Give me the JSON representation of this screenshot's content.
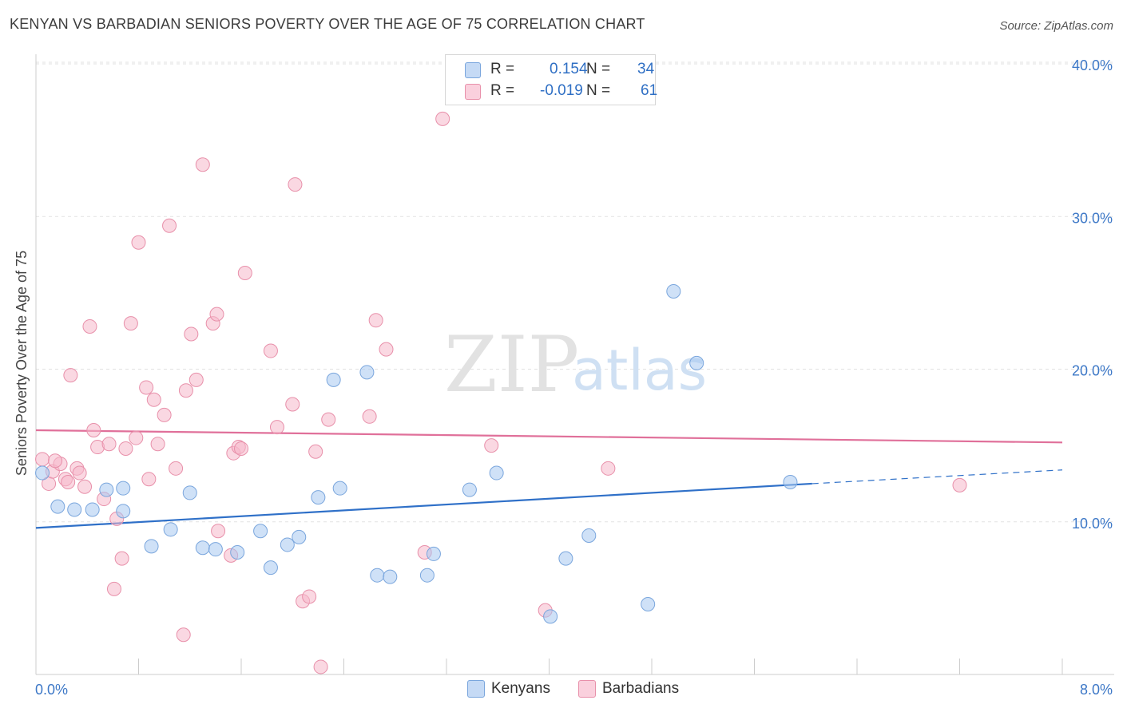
{
  "title": "KENYAN VS BARBADIAN SENIORS POVERTY OVER THE AGE OF 75 CORRELATION CHART",
  "source": "Source: ZipAtlas.com",
  "watermark": {
    "zip": "ZIP",
    "atlas": "atlas"
  },
  "legend_top": {
    "rows": [
      {
        "r_label": "R =",
        "r_value": "0.154",
        "n_label": "N =",
        "n_value": "34",
        "color": "#a8c8f0"
      },
      {
        "r_label": "R =",
        "r_value": "-0.019",
        "n_label": "N =",
        "n_value": "61",
        "color": "#f6b8cb"
      }
    ]
  },
  "legend_bottom": {
    "kenyans": "Kenyans",
    "barbadians": "Barbadians"
  },
  "chart_data": {
    "type": "scatter",
    "xlabel": "",
    "ylabel": "Seniors Poverty Over the Age of 75",
    "xlim": [
      0,
      8
    ],
    "ylim": [
      0,
      40
    ],
    "x_tick_labels": [
      "0.0%",
      "8.0%"
    ],
    "y_ticks": [
      10,
      20,
      30,
      40
    ],
    "y_tick_labels": [
      "10.0%",
      "20.0%",
      "30.0%",
      "40.0%"
    ],
    "grid": true,
    "legend": "bottom",
    "series": [
      {
        "name": "Kenyans",
        "color": "#a8c8f0",
        "edge": "#7aa6dd",
        "line_color": "#2f70c8",
        "trend": {
          "x0": 0.0,
          "y0": 9.6,
          "x1": 6.05,
          "y1": 12.5,
          "dash_to_x": 8.0,
          "dash_to_y": 13.4
        },
        "points": [
          [
            0.05,
            13.2
          ],
          [
            0.17,
            11.0
          ],
          [
            0.3,
            10.8
          ],
          [
            0.44,
            10.8
          ],
          [
            0.55,
            12.1
          ],
          [
            0.68,
            10.7
          ],
          [
            0.68,
            12.2
          ],
          [
            0.9,
            8.4
          ],
          [
            1.05,
            9.5
          ],
          [
            1.2,
            11.9
          ],
          [
            1.3,
            8.3
          ],
          [
            1.4,
            8.2
          ],
          [
            1.57,
            8.0
          ],
          [
            1.75,
            9.4
          ],
          [
            1.83,
            7.0
          ],
          [
            1.96,
            8.5
          ],
          [
            2.05,
            9.0
          ],
          [
            2.2,
            11.6
          ],
          [
            2.32,
            19.3
          ],
          [
            2.37,
            12.2
          ],
          [
            2.58,
            19.8
          ],
          [
            2.66,
            6.5
          ],
          [
            2.76,
            6.4
          ],
          [
            3.05,
            6.5
          ],
          [
            3.1,
            7.9
          ],
          [
            3.38,
            12.1
          ],
          [
            3.59,
            13.2
          ],
          [
            4.01,
            3.8
          ],
          [
            4.13,
            7.6
          ],
          [
            4.31,
            9.1
          ],
          [
            4.77,
            4.6
          ],
          [
            4.97,
            25.1
          ],
          [
            5.15,
            20.4
          ],
          [
            5.88,
            12.6
          ]
        ]
      },
      {
        "name": "Barbadians",
        "color": "#f6b8cb",
        "edge": "#e890aa",
        "line_color": "#e0709a",
        "trend": {
          "x0": 0.0,
          "y0": 16.0,
          "x1": 8.0,
          "y1": 15.2
        },
        "points": [
          [
            0.05,
            14.1
          ],
          [
            0.1,
            12.5
          ],
          [
            0.13,
            13.3
          ],
          [
            0.19,
            13.8
          ],
          [
            0.23,
            12.8
          ],
          [
            0.27,
            19.6
          ],
          [
            0.32,
            13.5
          ],
          [
            0.34,
            13.2
          ],
          [
            0.38,
            12.3
          ],
          [
            0.42,
            22.8
          ],
          [
            0.45,
            16.0
          ],
          [
            0.48,
            14.9
          ],
          [
            0.53,
            11.5
          ],
          [
            0.57,
            15.1
          ],
          [
            0.61,
            5.6
          ],
          [
            0.63,
            10.2
          ],
          [
            0.67,
            7.6
          ],
          [
            0.7,
            14.8
          ],
          [
            0.74,
            23.0
          ],
          [
            0.78,
            15.5
          ],
          [
            0.8,
            28.3
          ],
          [
            0.86,
            18.8
          ],
          [
            0.88,
            12.8
          ],
          [
            0.92,
            18.0
          ],
          [
            0.95,
            15.1
          ],
          [
            1.0,
            17.0
          ],
          [
            1.04,
            29.4
          ],
          [
            1.09,
            13.5
          ],
          [
            1.15,
            2.6
          ],
          [
            1.17,
            18.6
          ],
          [
            1.21,
            22.3
          ],
          [
            1.25,
            19.3
          ],
          [
            1.3,
            33.4
          ],
          [
            1.38,
            23.0
          ],
          [
            1.41,
            23.6
          ],
          [
            1.42,
            9.4
          ],
          [
            1.52,
            7.8
          ],
          [
            1.54,
            14.5
          ],
          [
            1.58,
            14.9
          ],
          [
            1.6,
            14.8
          ],
          [
            1.63,
            26.3
          ],
          [
            1.83,
            21.2
          ],
          [
            1.88,
            16.2
          ],
          [
            2.0,
            17.7
          ],
          [
            2.02,
            32.1
          ],
          [
            2.08,
            4.8
          ],
          [
            2.13,
            5.1
          ],
          [
            2.18,
            14.6
          ],
          [
            2.22,
            0.5
          ],
          [
            2.28,
            16.7
          ],
          [
            2.6,
            16.9
          ],
          [
            2.65,
            23.2
          ],
          [
            2.73,
            21.3
          ],
          [
            3.03,
            8.0
          ],
          [
            3.17,
            36.4
          ],
          [
            3.55,
            15.0
          ],
          [
            3.97,
            4.2
          ],
          [
            4.46,
            13.5
          ],
          [
            7.2,
            12.4
          ],
          [
            0.15,
            14.0
          ],
          [
            0.25,
            12.6
          ]
        ]
      }
    ]
  }
}
